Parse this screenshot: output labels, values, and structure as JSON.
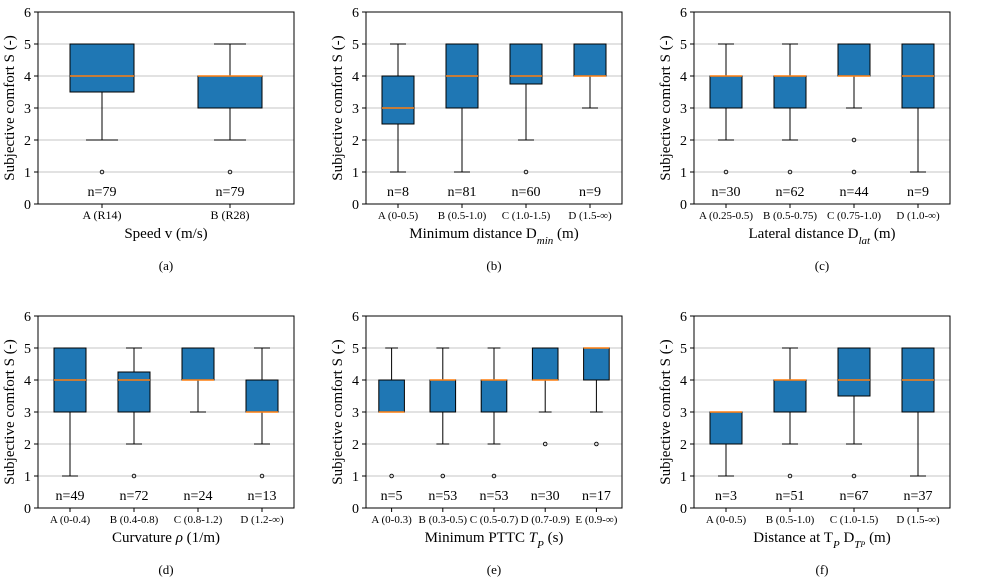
{
  "chart_data": [
    {
      "type": "box",
      "panel_label": "(a)",
      "xlabel": "Speed v (m/s)",
      "ylabel": "Subjective comfort S (-)",
      "ylim": [
        0,
        6
      ],
      "yticks": [
        "0",
        "1",
        "2",
        "3",
        "4",
        "5",
        "6"
      ],
      "grid": "horizontal",
      "box_color": "#1f77b4",
      "median_color": "#ff7f0e",
      "categories": [
        "A (R14)",
        "B (R28)"
      ],
      "boxes": [
        {
          "q1": 3.5,
          "median": 4,
          "q3": 5,
          "whislo": 2,
          "whishi": 5,
          "fliers": [
            1
          ],
          "count": "n=79"
        },
        {
          "q1": 3,
          "median": 4,
          "q3": 4,
          "whislo": 2,
          "whishi": 5,
          "fliers": [
            1
          ],
          "count": "n=79"
        }
      ]
    },
    {
      "type": "box",
      "panel_label": "(b)",
      "xlabel": "Minimum distance D",
      "xlabel_sub": "min",
      "xlabel_tail": " (m)",
      "ylabel": "Subjective comfort S (-)",
      "ylim": [
        0,
        6
      ],
      "yticks": [
        "0",
        "1",
        "2",
        "3",
        "4",
        "5",
        "6"
      ],
      "grid": "horizontal",
      "box_color": "#1f77b4",
      "median_color": "#ff7f0e",
      "categories": [
        "A (0-0.5)",
        "B (0.5-1.0)",
        "C (1.0-1.5)",
        "D (1.5-∞)"
      ],
      "boxes": [
        {
          "q1": 2.5,
          "median": 3,
          "q3": 4,
          "whislo": 1,
          "whishi": 5,
          "fliers": [],
          "count": "n=8"
        },
        {
          "q1": 3,
          "median": 4,
          "q3": 5,
          "whislo": 1,
          "whishi": 5,
          "fliers": [],
          "count": "n=81"
        },
        {
          "q1": 3.75,
          "median": 4,
          "q3": 5,
          "whislo": 2,
          "whishi": 5,
          "fliers": [
            1
          ],
          "count": "n=60"
        },
        {
          "q1": 4,
          "median": 4,
          "q3": 5,
          "whislo": 3,
          "whishi": 5,
          "fliers": [],
          "count": "n=9"
        }
      ]
    },
    {
      "type": "box",
      "panel_label": "(c)",
      "xlabel": "Lateral distance D",
      "xlabel_sub": "lat",
      "xlabel_tail": " (m)",
      "ylabel": "Subjective comfort S (-)",
      "ylim": [
        0,
        6
      ],
      "yticks": [
        "0",
        "1",
        "2",
        "3",
        "4",
        "5",
        "6"
      ],
      "grid": "horizontal",
      "box_color": "#1f77b4",
      "median_color": "#ff7f0e",
      "categories": [
        "A (0.25-0.5)",
        "B (0.5-0.75)",
        "C (0.75-1.0)",
        "D (1.0-∞)"
      ],
      "boxes": [
        {
          "q1": 3,
          "median": 4,
          "q3": 4,
          "whislo": 2,
          "whishi": 5,
          "fliers": [
            1
          ],
          "count": "n=30"
        },
        {
          "q1": 3,
          "median": 4,
          "q3": 4,
          "whislo": 2,
          "whishi": 5,
          "fliers": [
            1
          ],
          "count": "n=62"
        },
        {
          "q1": 4,
          "median": 4,
          "q3": 5,
          "whislo": 3,
          "whishi": 5,
          "fliers": [
            1,
            2
          ],
          "count": "n=44"
        },
        {
          "q1": 3,
          "median": 4,
          "q3": 5,
          "whislo": 1,
          "whishi": 5,
          "fliers": [],
          "count": "n=9"
        }
      ]
    },
    {
      "type": "box",
      "panel_label": "(d)",
      "xlabel": "Curvature ",
      "xlabel_italic": "ρ",
      "xlabel_tail": " (1/m)",
      "ylabel": "Subjective comfort S (-)",
      "ylim": [
        0,
        6
      ],
      "yticks": [
        "0",
        "1",
        "2",
        "3",
        "4",
        "5",
        "6"
      ],
      "grid": "horizontal",
      "box_color": "#1f77b4",
      "median_color": "#ff7f0e",
      "categories": [
        "A (0-0.4)",
        "B (0.4-0.8)",
        "C (0.8-1.2)",
        "D (1.2-∞)"
      ],
      "boxes": [
        {
          "q1": 3,
          "median": 4,
          "q3": 5,
          "whislo": 1,
          "whishi": 5,
          "fliers": [],
          "count": "n=49"
        },
        {
          "q1": 3,
          "median": 4,
          "q3": 4.25,
          "whislo": 2,
          "whishi": 5,
          "fliers": [
            1
          ],
          "count": "n=72"
        },
        {
          "q1": 4,
          "median": 4,
          "q3": 5,
          "whislo": 3,
          "whishi": 5,
          "fliers": [],
          "count": "n=24"
        },
        {
          "q1": 3,
          "median": 3,
          "q3": 4,
          "whislo": 2,
          "whishi": 5,
          "fliers": [
            1
          ],
          "count": "n=13"
        }
      ]
    },
    {
      "type": "box",
      "panel_label": "(e)",
      "xlabel": "Minimum PTTC ",
      "xlabel_italic": "T",
      "xlabel_italic_sub": "P",
      "xlabel_tail": " (s)",
      "ylabel": "Subjective comfort S (-)",
      "ylim": [
        0,
        6
      ],
      "yticks": [
        "0",
        "1",
        "2",
        "3",
        "4",
        "5",
        "6"
      ],
      "grid": "horizontal",
      "box_color": "#1f77b4",
      "median_color": "#ff7f0e",
      "categories": [
        "A (0-0.3)",
        "B (0.3-0.5)",
        "C (0.5-0.7)",
        "D (0.7-0.9)",
        "E (0.9-∞)"
      ],
      "boxes": [
        {
          "q1": 3,
          "median": 3,
          "q3": 4,
          "whislo": 3,
          "whishi": 5,
          "fliers": [
            1
          ],
          "count": "n=5"
        },
        {
          "q1": 3,
          "median": 4,
          "q3": 4,
          "whislo": 2,
          "whishi": 5,
          "fliers": [
            1
          ],
          "count": "n=53"
        },
        {
          "q1": 3,
          "median": 4,
          "q3": 4,
          "whislo": 2,
          "whishi": 5,
          "fliers": [
            1
          ],
          "count": "n=53"
        },
        {
          "q1": 4,
          "median": 4,
          "q3": 5,
          "whislo": 3,
          "whishi": 5,
          "fliers": [
            2
          ],
          "count": "n=30"
        },
        {
          "q1": 4,
          "median": 5,
          "q3": 5,
          "whislo": 3,
          "whishi": 5,
          "fliers": [
            2
          ],
          "count": "n=17"
        }
      ]
    },
    {
      "type": "box",
      "panel_label": "(f)",
      "xlabel": "Distance at T",
      "xlabel_sub": "P",
      "xlabel_mid": " D",
      "xlabel_sub2": "T",
      "xlabel_sub2_sub": "P",
      "xlabel_tail": " (m)",
      "ylabel": "Subjective comfort S (-)",
      "ylim": [
        0,
        6
      ],
      "yticks": [
        "0",
        "1",
        "2",
        "3",
        "4",
        "5",
        "6"
      ],
      "grid": "horizontal",
      "box_color": "#1f77b4",
      "median_color": "#ff7f0e",
      "categories": [
        "A (0-0.5)",
        "B (0.5-1.0)",
        "C (1.0-1.5)",
        "D (1.5-∞)"
      ],
      "boxes": [
        {
          "q1": 2,
          "median": 3,
          "q3": 3,
          "whislo": 1,
          "whishi": 3,
          "fliers": [],
          "count": "n=3"
        },
        {
          "q1": 3,
          "median": 4,
          "q3": 4,
          "whislo": 2,
          "whishi": 5,
          "fliers": [
            1
          ],
          "count": "n=51"
        },
        {
          "q1": 3.5,
          "median": 4,
          "q3": 5,
          "whislo": 2,
          "whishi": 5,
          "fliers": [
            1
          ],
          "count": "n=67"
        },
        {
          "q1": 3,
          "median": 4,
          "q3": 5,
          "whislo": 1,
          "whishi": 5,
          "fliers": [],
          "count": "n=37"
        }
      ]
    }
  ]
}
